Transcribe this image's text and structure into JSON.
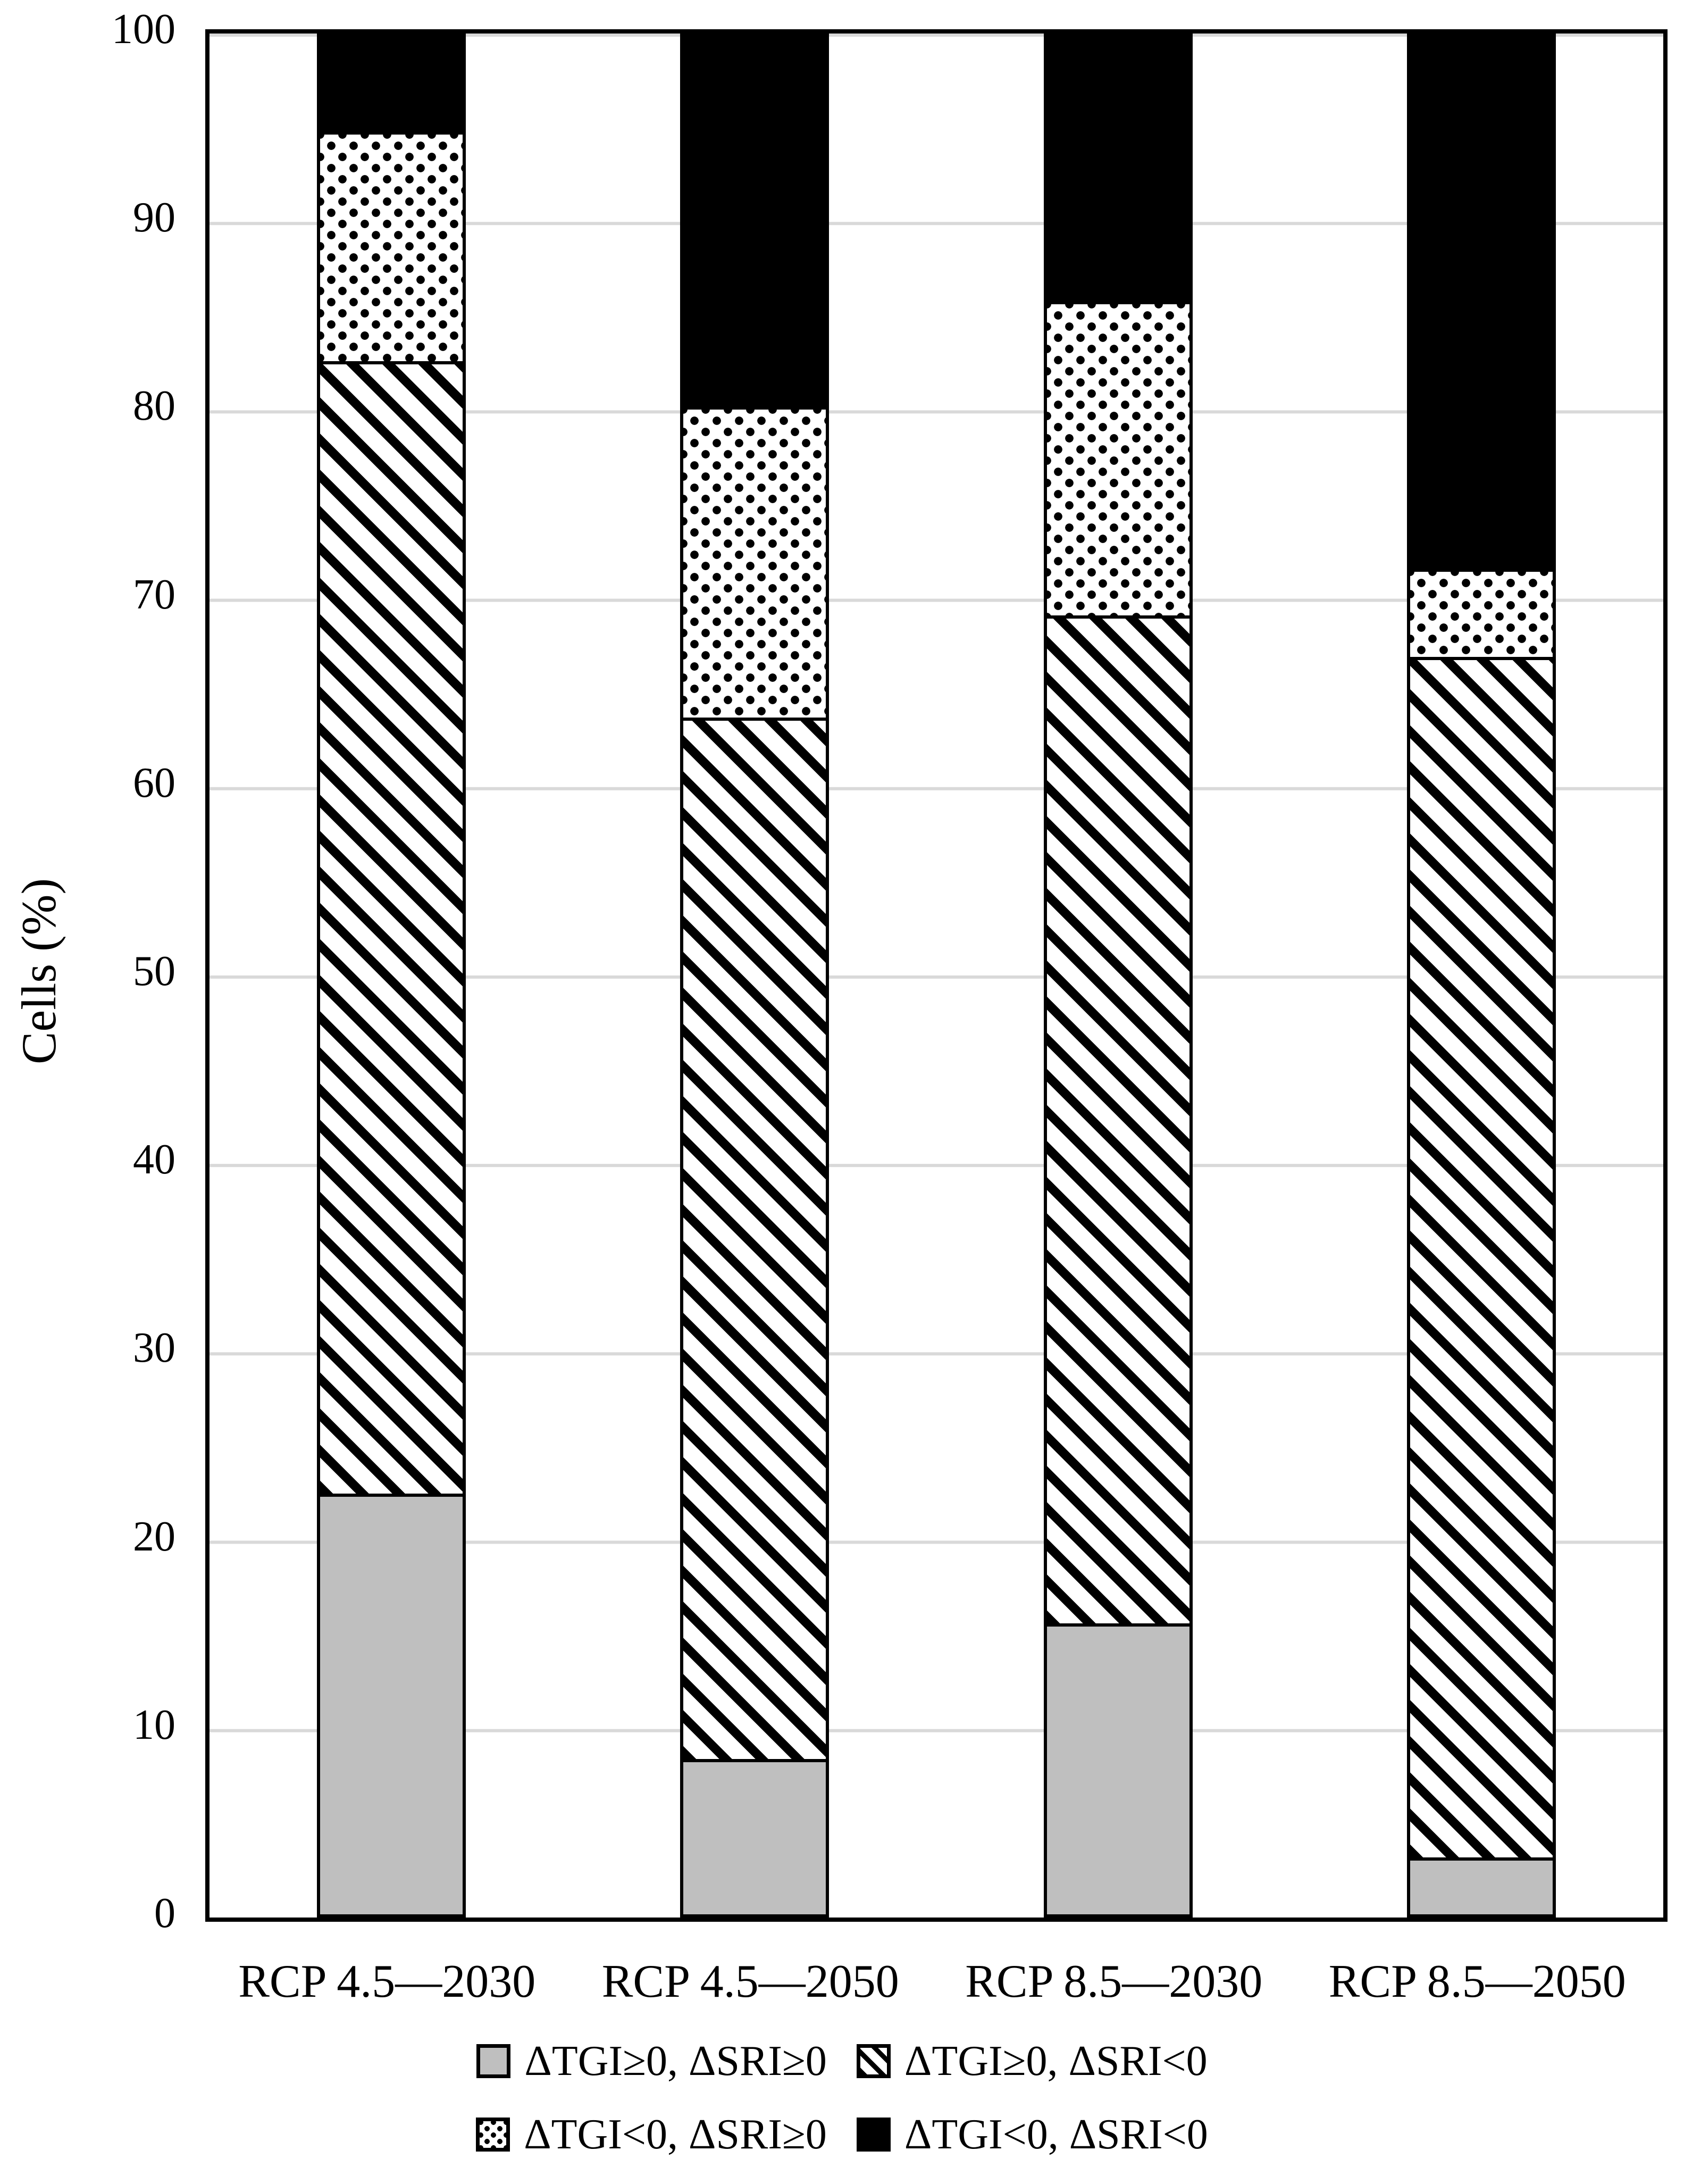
{
  "chart_data": {
    "type": "bar",
    "stacked": true,
    "percent_stacked": true,
    "title": "",
    "xlabel": "",
    "ylabel": "Cells (%)",
    "ylim": [
      0,
      100
    ],
    "yticks": [
      0,
      10,
      20,
      30,
      40,
      50,
      60,
      70,
      80,
      90,
      100
    ],
    "grid": "horizontal",
    "legend_position": "bottom",
    "legend_rows": [
      [
        0,
        1
      ],
      [
        2,
        3
      ]
    ],
    "categories": [
      "RCP 4.5—2030",
      "RCP 4.5—2050",
      "RCP 8.5—2030",
      "RCP 8.5—2050"
    ],
    "series": [
      {
        "name": "ΔTGI≥0, ΔSRI≥0",
        "pattern": "solid-gray",
        "color": "#bfbfbf",
        "values": [
          22.5,
          8.4,
          15.6,
          3.2
        ]
      },
      {
        "name": "ΔTGI≥0, ΔSRI<0",
        "pattern": "diagonal-hatch",
        "color": "#000000",
        "values": [
          60.1,
          55.3,
          53.5,
          63.7
        ]
      },
      {
        "name": "ΔTGI<0, ΔSRI≥0",
        "pattern": "dots",
        "color": "#000000",
        "values": [
          12.2,
          16.5,
          16.7,
          4.7
        ]
      },
      {
        "name": "ΔTGI<0, ΔSRI<0",
        "pattern": "solid-black",
        "color": "#000000",
        "values": [
          5.2,
          19.8,
          14.2,
          28.4
        ]
      }
    ],
    "colors": {
      "background": "#ffffff",
      "gridline": "#d9d9d9",
      "axis": "#000000",
      "bar_gray": "#bfbfbf"
    }
  }
}
